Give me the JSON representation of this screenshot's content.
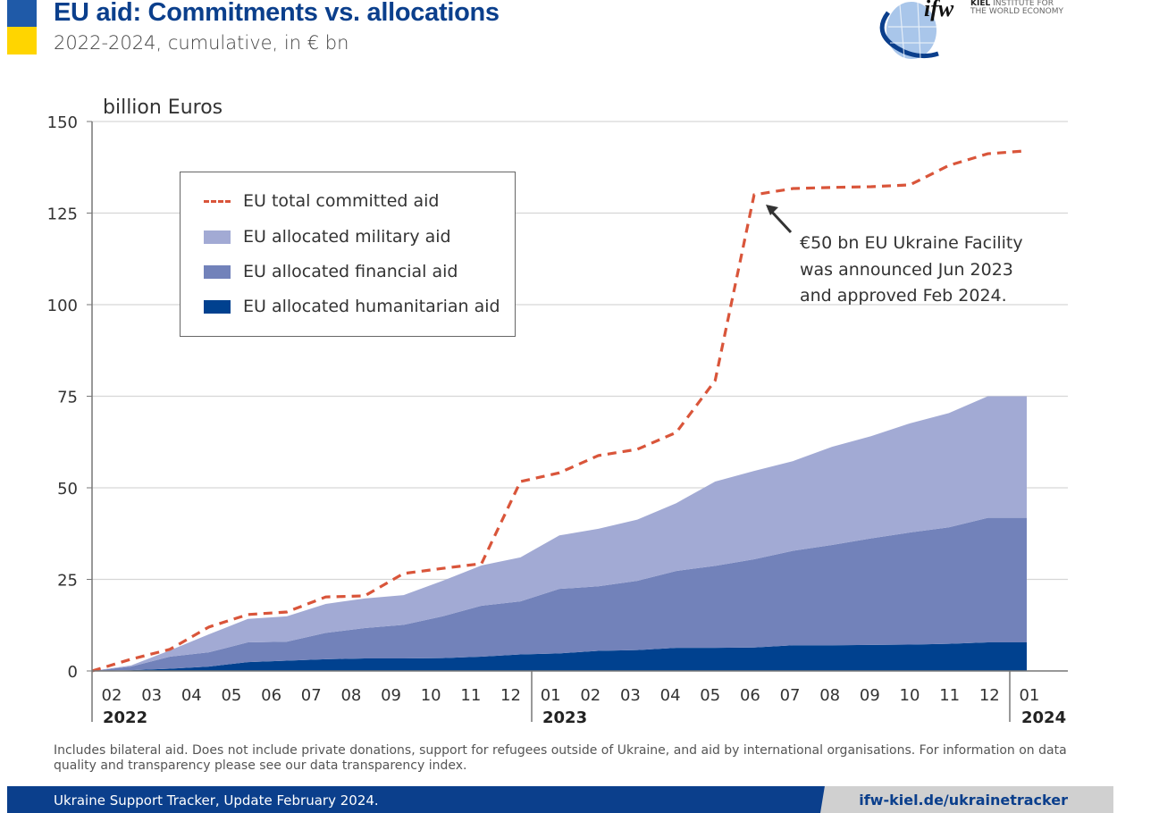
{
  "header": {
    "title": "EU aid: Commitments vs. allocations",
    "subtitle": "2022-2024, cumulative, in € bn",
    "logo_text": "ifw KIEL INSTITUTE FOR THE WORLD ECONOMY",
    "logo_line1_bold": "KIEL",
    "logo_line1": "INSTITUTE FOR",
    "logo_line2": "THE WORLD ECONOMY",
    "flag_colors": [
      "#1f5aa8",
      "#ffd500"
    ]
  },
  "chart_data": {
    "type": "area",
    "stacked": true,
    "ylabel": "billion Euros",
    "ylim": [
      0,
      150
    ],
    "yticks": [
      0,
      25,
      50,
      75,
      100,
      125,
      150
    ],
    "grid": true,
    "legend_position": "top-left",
    "x": [
      "2022-01",
      "2022-02",
      "2022-03",
      "2022-04",
      "2022-05",
      "2022-06",
      "2022-07",
      "2022-08",
      "2022-09",
      "2022-10",
      "2022-11",
      "2022-12",
      "2023-01",
      "2023-02",
      "2023-03",
      "2023-04",
      "2023-05",
      "2023-06",
      "2023-07",
      "2023-08",
      "2023-09",
      "2023-10",
      "2023-11",
      "2023-12",
      "2024-01"
    ],
    "month_ticks": [
      "02",
      "03",
      "04",
      "05",
      "06",
      "07",
      "08",
      "09",
      "10",
      "11",
      "12",
      "01",
      "02",
      "03",
      "04",
      "05",
      "06",
      "07",
      "08",
      "09",
      "10",
      "11",
      "12",
      "01"
    ],
    "year_labels": [
      "2022",
      "2023",
      "2024"
    ],
    "series": [
      {
        "name": "EU allocated humanitarian aid",
        "kind": "area",
        "color": "#00418f",
        "values": [
          0,
          0.2,
          0.6,
          1.2,
          2.4,
          2.8,
          3.2,
          3.4,
          3.4,
          3.5,
          3.9,
          4.5,
          4.8,
          5.5,
          5.7,
          6.3,
          6.3,
          6.4,
          7.0,
          7.0,
          7.1,
          7.2,
          7.4,
          7.8,
          7.8
        ]
      },
      {
        "name": "EU allocated financial aid",
        "kind": "area",
        "color": "#7282ba",
        "values": [
          0,
          1.0,
          3.3,
          3.9,
          5.4,
          5.2,
          7.2,
          8.3,
          9.2,
          11.4,
          13.9,
          14.5,
          17.6,
          17.6,
          18.9,
          21.0,
          22.4,
          24.1,
          25.8,
          27.4,
          29.1,
          30.6,
          31.8,
          34.0,
          34.0
        ]
      },
      {
        "name": "EU allocated military aid",
        "kind": "area",
        "color": "#a2aad4",
        "values": [
          0,
          0.3,
          1.7,
          4.9,
          6.4,
          6.9,
          7.9,
          8.1,
          8.1,
          9.7,
          11.0,
          12.0,
          14.6,
          15.7,
          16.7,
          18.5,
          23.0,
          24.1,
          24.5,
          26.8,
          27.9,
          29.8,
          31.2,
          33.2,
          33.2
        ]
      },
      {
        "name": "EU total committed aid",
        "kind": "dashed-line",
        "color": "#d9553a",
        "values": [
          0,
          3.2,
          5.9,
          12.0,
          15.4,
          16.1,
          20.2,
          20.5,
          26.6,
          28.0,
          29.3,
          51.7,
          54.1,
          58.8,
          60.5,
          65.1,
          79.3,
          130.0,
          131.7,
          132.0,
          132.2,
          132.7,
          138.0,
          141.2,
          142.0
        ]
      }
    ],
    "legend_order": [
      "EU total committed aid",
      "EU allocated military aid",
      "EU allocated financial aid",
      "EU allocated humanitarian aid"
    ],
    "annotation": [
      "€50 bn EU Ukraine Facility",
      "was announced Jun 2023",
      "and approved Feb 2024."
    ]
  },
  "legend": {
    "items": [
      {
        "label": "EU total committed aid",
        "color": "#d9553a"
      },
      {
        "label": "EU allocated military aid",
        "color": "#a2aad4"
      },
      {
        "label": "EU allocated financial aid",
        "color": "#7282ba"
      },
      {
        "label": "EU allocated humanitarian aid",
        "color": "#00418f"
      }
    ]
  },
  "footer": {
    "note": "Includes bilateral aid. Does not include private donations, support for refugees outside of Ukraine, and aid by international organisations. For information on data quality and transparency please see our data transparency index.",
    "source": "Ukraine Support Tracker, Update February 2024.",
    "link": "ifw-kiel.de/ukrainetracker"
  }
}
